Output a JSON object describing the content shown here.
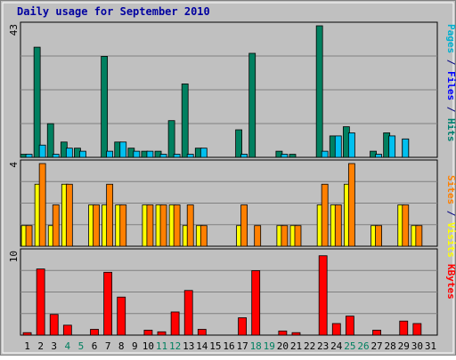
{
  "chart_data": {
    "type": "bar",
    "title": "Daily usage for September 2010",
    "days": [
      "1",
      "2",
      "3",
      "4",
      "5",
      "6",
      "7",
      "8",
      "9",
      "10",
      "11",
      "12",
      "13",
      "14",
      "15",
      "16",
      "17",
      "18",
      "19",
      "20",
      "21",
      "22",
      "23",
      "24",
      "25",
      "26",
      "27",
      "28",
      "29",
      "30",
      "31"
    ],
    "weekend_days": [
      4,
      5,
      11,
      12,
      18,
      19,
      25,
      26
    ],
    "panels": [
      {
        "id": "top",
        "ymax_label": "43",
        "ymax": 43,
        "legend": [
          {
            "text": "Pages",
            "color": "#00b0d0"
          },
          {
            "text": " / ",
            "color": "#000080"
          },
          {
            "text": "Files",
            "color": "#0000ff"
          },
          {
            "text": " / ",
            "color": "#000080"
          },
          {
            "text": "Hits",
            "color": "#008070"
          }
        ],
        "series": [
          {
            "name": "Hits",
            "color": "#008060",
            "values": [
              1,
              36,
              11,
              5,
              3,
              0,
              33,
              5,
              3,
              2,
              2,
              12,
              24,
              3,
              0,
              0,
              9,
              34,
              0,
              2,
              1,
              0,
              43,
              7,
              10,
              0,
              2,
              8,
              0,
              0,
              0
            ]
          },
          {
            "name": "Files",
            "color": "#00c0f0",
            "values": [
              1,
              4,
              1,
              3,
              2,
              0,
              2,
              5,
              2,
              2,
              1,
              1,
              1,
              3,
              0,
              0,
              1,
              0,
              0,
              1,
              0,
              0,
              2,
              7,
              8,
              0,
              1,
              7,
              6,
              0,
              0
            ]
          },
          {
            "name": "Pages",
            "color": "#00c0f0",
            "values": [
              0,
              0,
              0,
              0,
              0,
              0,
              0,
              0,
              0,
              0,
              0,
              0,
              0,
              0,
              0,
              0,
              0,
              0,
              0,
              0,
              0,
              0,
              0,
              0,
              0,
              0,
              0,
              0,
              6,
              0,
              0
            ]
          }
        ]
      },
      {
        "id": "mid",
        "ymax_label": "4",
        "ymax": 4,
        "legend": [
          {
            "text": "Sites",
            "color": "#ff8000"
          },
          {
            "text": " / ",
            "color": "#000080"
          },
          {
            "text": "Visits",
            "color": "#ffff00"
          }
        ],
        "series": [
          {
            "name": "Visits",
            "color": "#ffff00",
            "values": [
              1,
              3,
              1,
              3,
              0,
              2,
              2,
              2,
              0,
              2,
              2,
              2,
              1,
              1,
              0,
              0,
              1,
              0,
              0,
              1,
              1,
              0,
              2,
              2,
              3,
              0,
              1,
              0,
              2,
              1,
              0
            ]
          },
          {
            "name": "Sites",
            "color": "#ff8000",
            "values": [
              1,
              4,
              2,
              3,
              0,
              2,
              3,
              2,
              0,
              2,
              2,
              2,
              2,
              1,
              0,
              0,
              2,
              1,
              0,
              1,
              1,
              0,
              3,
              2,
              4,
              0,
              1,
              0,
              2,
              1,
              0
            ]
          }
        ]
      },
      {
        "id": "bot",
        "ymax_label": "10",
        "ymax": 10,
        "legend": [
          {
            "text": "KBytes",
            "color": "#ff0000"
          }
        ],
        "series": [
          {
            "name": "KBytes",
            "color": "#ff0000",
            "values": [
              0.3,
              8,
              2.5,
              1.2,
              0,
              0.7,
              7.6,
              4.6,
              0,
              0.6,
              0.4,
              2.8,
              5.4,
              0.7,
              0,
              0,
              2.1,
              7.8,
              0,
              0.5,
              0.3,
              0,
              9.6,
              1.4,
              2.3,
              0,
              0.6,
              0,
              1.7,
              1.4,
              0
            ]
          }
        ]
      }
    ]
  }
}
